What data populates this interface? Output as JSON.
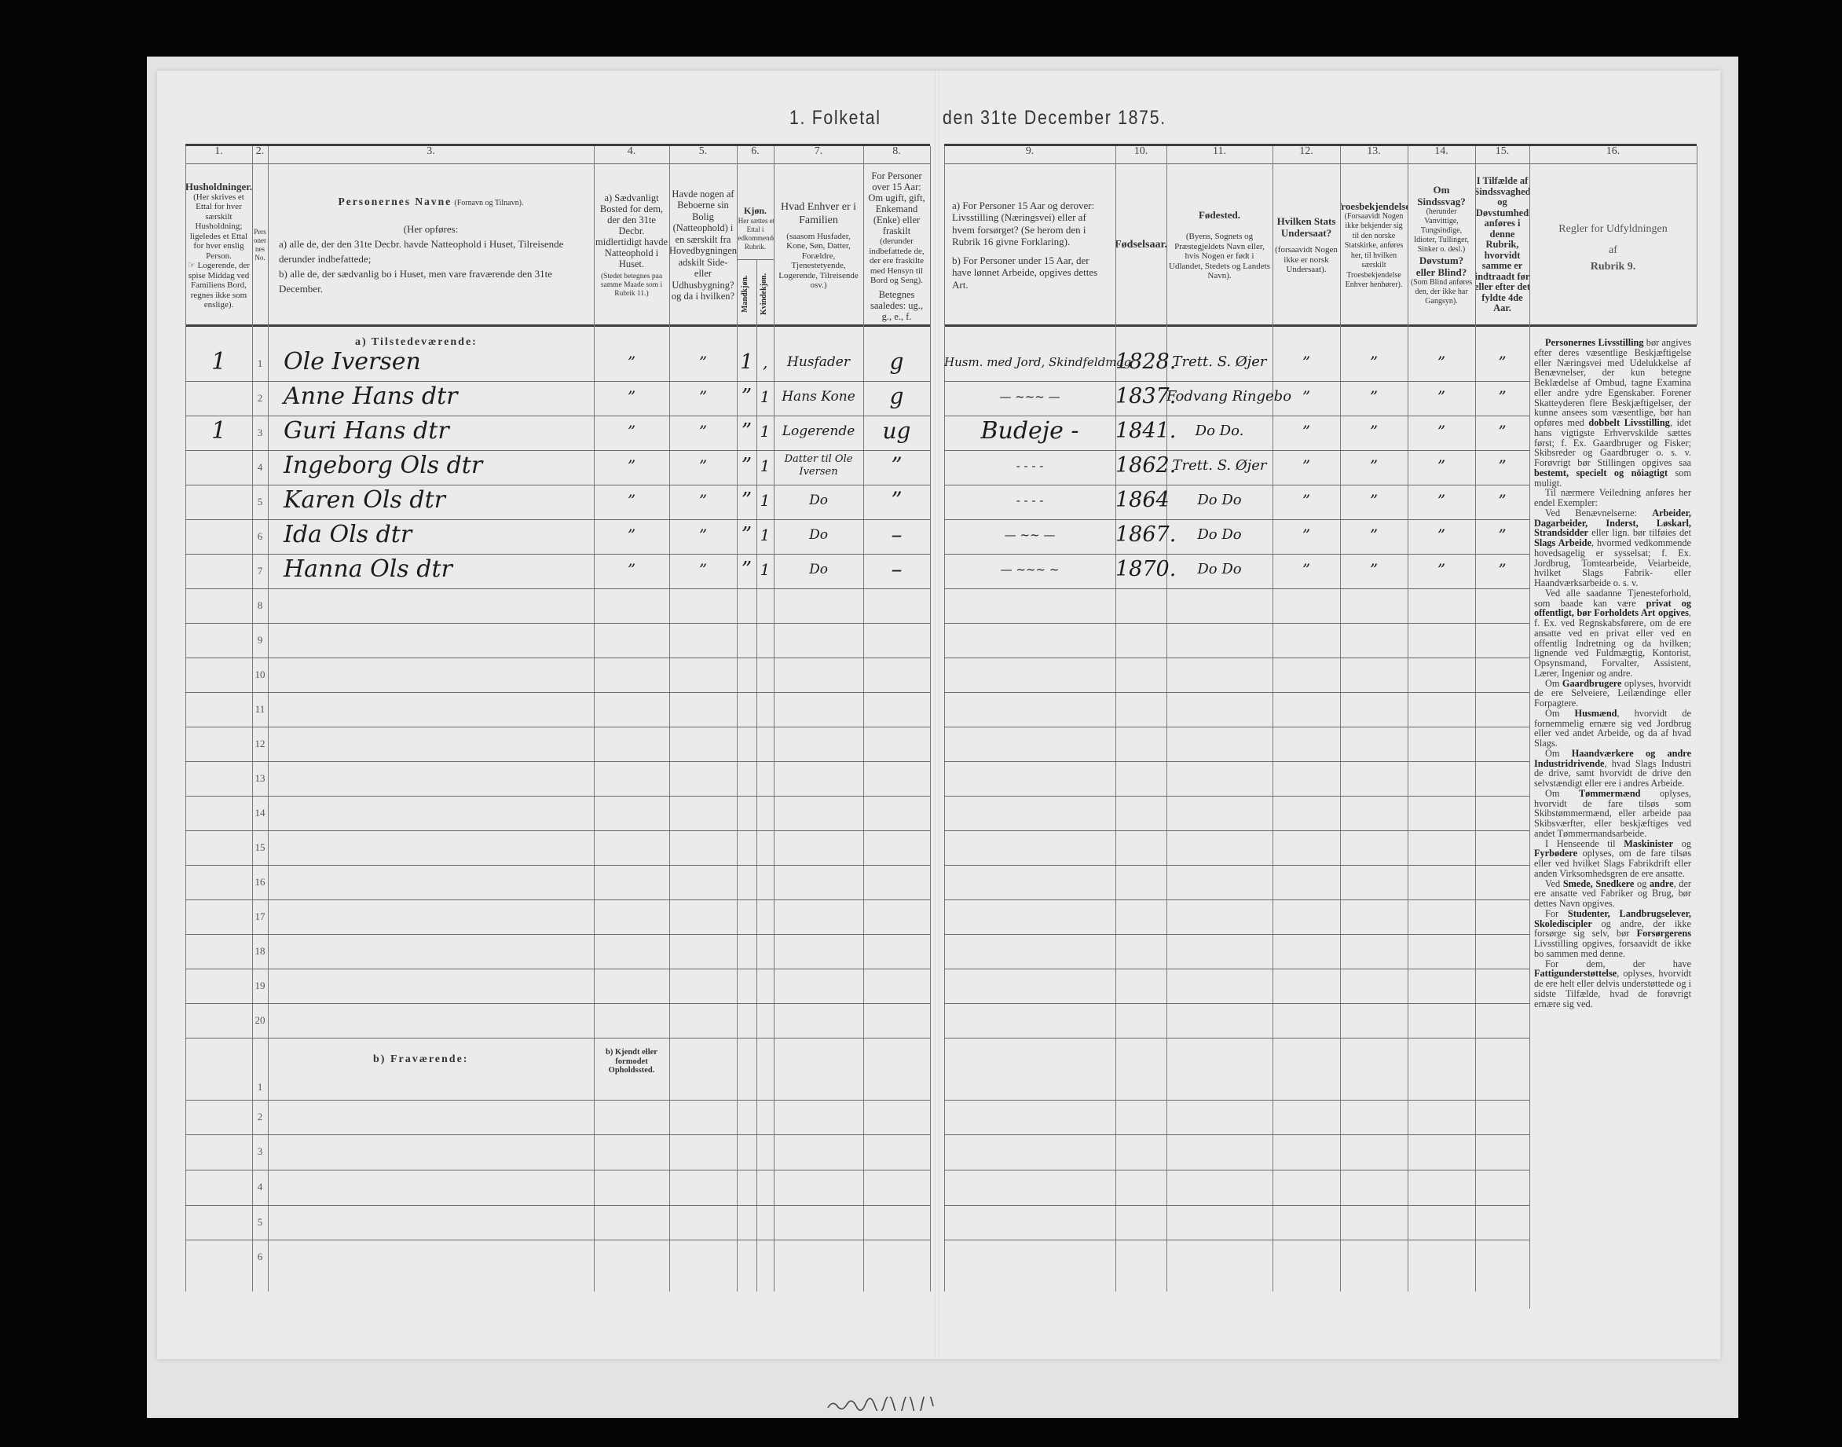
{
  "title": {
    "part1": "1. Folketal",
    "part2": "den 31te December 1875."
  },
  "column_numbers": [
    "1.",
    "2.",
    "3.",
    "4.",
    "5.",
    "6.",
    "7.",
    "8.",
    "9.",
    "10.",
    "11.",
    "12.",
    "13.",
    "14.",
    "15.",
    "16."
  ],
  "headers": {
    "col1": {
      "title": "Husholdninger.",
      "note": "(Her skrives et Ettal for hver særskilt Husholdning; ligeledes et Ettal for hver enslig Person.",
      "note2": "☞ Logerende, der spise Middag ved Familiens Bord, regnes ikke som enslige)."
    },
    "col2": {
      "title": "Personernes No."
    },
    "col3": {
      "title": "Personernes Navne",
      "title_note": "(Fornavn og Tilnavn).",
      "intro": "(Her opføres:",
      "a": "a) alle de, der den 31te Decbr. havde Natteophold i Huset, Tilreisende derunder indbefattede;",
      "b": "b) alle de, der sædvanlig bo i Huset, men vare fraværende den 31te December."
    },
    "col4": {
      "title": "a) Sædvanligt Bosted for dem, der den 31te Decbr. midlertidigt havde Natteophold i Huset.",
      "note": "(Stedet betegnes paa samme Maade som i Rubrik 11.)"
    },
    "col5": {
      "title": "Havde nogen af Beboerne sin Bolig (Natteophold) i en særskilt fra Hovedbygningen adskilt Side- eller Udhusbygning? og da i hvilken?"
    },
    "col6": {
      "title": "Kjøn.",
      "note": "(Her sættes et Ettal i vedkommende Rubrik.",
      "male": "Mandkjøn.",
      "female": "Kvindekjøn."
    },
    "col7": {
      "title": "Hvad Enhver er i Familien",
      "note": "(saasom Husfader, Kone, Søn, Datter, Forældre, Tjenestetyende, Logerende, Tilreisende osv.)"
    },
    "col8": {
      "title": "For Personer over 15 Aar: Om ugift, gift, Enkemand (Enke) eller fraskilt",
      "note": "(derunder indbefattede de, der ere fraskilte med Hensyn til Bord og Seng).",
      "note2": "Betegnes saaledes: ug., g., e., f."
    },
    "col9": {
      "a": "a) For Personer 15 Aar og derover: Livsstilling (Næringsvei) eller af hvem forsørget? (Se herom den i Rubrik 16 givne Forklaring).",
      "b": "b) For Personer under 15 Aar, der have lønnet Arbeide, opgives dettes Art."
    },
    "col10": {
      "title": "Fødselsaar."
    },
    "col11": {
      "title": "Fødested.",
      "note": "(Byens, Sognets og Præstegjeldets Navn eller, hvis Nogen er født i Udlandet, Stedets og Landets Navn)."
    },
    "col12": {
      "title": "Hvilken Stats Undersaat?",
      "note": "(forsaavidt Nogen ikke er norsk Undersaat)."
    },
    "col13": {
      "title": "Troesbekjendelse.",
      "note": "(Forsaavidt Nogen ikke bekjender sig til den norske Statskirke, anføres her, til hvilken særskilt Troesbekjendelse Enhver henhører)."
    },
    "col14": {
      "title": "Om Sindssvag?",
      "note": "(herunder Vanvittige, Tungsindige, Idioter, Tullinger, Sinker o. desl.)",
      "title2": "Døvstum? eller Blind?",
      "note2": "(Som Blind anføres den, der ikke har Gangsyn)."
    },
    "col15": {
      "title": "I Tilfælde af Sindssvaghed og Døvstumhed anføres i denne Rubrik, hvorvidt samme er indtraadt før eller efter det fyldte 4de Aar."
    },
    "col16": {
      "line1": "Regler for Udfyldningen",
      "line2": "af",
      "line3": "Rubrik 9."
    }
  },
  "present_label": "a) Tilstedeværende:",
  "absent_label": "b) Fraværende:",
  "absent_col4_label": "b) Kjendt eller formodet Opholdssted.",
  "present_row_numbers": [
    "1",
    "2",
    "3",
    "4",
    "5",
    "6",
    "7",
    "8",
    "9",
    "10",
    "11",
    "12",
    "13",
    "14",
    "15",
    "16",
    "17",
    "18",
    "19",
    "20"
  ],
  "absent_row_numbers": [
    "1",
    "2",
    "3",
    "4",
    "5",
    "6"
  ],
  "rows": [
    {
      "household": "1",
      "name": "Ole Iversen",
      "bosted": "”",
      "bolig": "”",
      "male": "1",
      "female": "‚",
      "family_role": "Husfader",
      "civil": "g",
      "occupation": "Husm. med Jord, Skindfeldmag",
      "birth_year": "1828.",
      "birthplace": "Trett. S. Øjer",
      "citizenship": "”",
      "religion": "”",
      "insane": "”",
      "onset": "”"
    },
    {
      "household": "",
      "name": "Anne Hans dtr",
      "bosted": "”",
      "bolig": "”",
      "male": "”",
      "female": "1",
      "family_role": "Hans Kone",
      "civil": "g",
      "occupation": "— ~~~ —",
      "birth_year": "1837.",
      "birthplace": "Fodvang Ringebo",
      "citizenship": "”",
      "religion": "”",
      "insane": "”",
      "onset": "”"
    },
    {
      "household": "1",
      "name": "Guri Hans dtr",
      "bosted": "”",
      "bolig": "”",
      "male": "”",
      "female": "1",
      "family_role": "Logerende",
      "civil": "ug",
      "occupation": "Budeje -",
      "birth_year": "1841.",
      "birthplace": "Do   Do.",
      "citizenship": "”",
      "religion": "”",
      "insane": "”",
      "onset": "”"
    },
    {
      "household": "",
      "name": "Ingeborg Ols dtr",
      "bosted": "”",
      "bolig": "”",
      "male": "”",
      "female": "1",
      "family_role": "Datter til Ole Iversen",
      "civil": "”",
      "occupation": "- - - -",
      "birth_year": "1862.",
      "birthplace": "Trett. S. Øjer",
      "citizenship": "”",
      "religion": "”",
      "insane": "”",
      "onset": "”"
    },
    {
      "household": "",
      "name": "Karen Ols dtr",
      "bosted": "”",
      "bolig": "”",
      "male": "”",
      "female": "1",
      "family_role": "Do",
      "civil": "”",
      "occupation": "- - - -",
      "birth_year": "1864",
      "birthplace": "Do   Do",
      "citizenship": "”",
      "religion": "”",
      "insane": "”",
      "onset": "”"
    },
    {
      "household": "",
      "name": "Ida Ols dtr",
      "bosted": "”",
      "bolig": "”",
      "male": "”",
      "female": "1",
      "family_role": "Do",
      "civil": "–",
      "occupation": "— ~~ —",
      "birth_year": "1867.",
      "birthplace": "Do   Do",
      "citizenship": "”",
      "religion": "”",
      "insane": "”",
      "onset": "”"
    },
    {
      "household": "",
      "name": "Hanna Ols dtr",
      "bosted": "”",
      "bolig": "”",
      "male": "”",
      "female": "1",
      "family_role": "Do",
      "civil": "–",
      "occupation": "—  ~~~  ~",
      "birth_year": "1870.",
      "birthplace": "Do   Do",
      "citizenship": "”",
      "religion": "”",
      "insane": "”",
      "onset": "”"
    }
  ],
  "rules": [
    "<b>Personernes Livsstilling</b> bør angives efter deres væsentlige Beskjæftigelse eller Næringsvei med Udelukkelse af Benævnelser, der kun betegne Beklædelse af Ombud, tagne Examina eller andre ydre Egenskaber. Forener Skatteyderen flere Beskjæftigelser, der kunne ansees som væsentlige, bør han opføres med <b>dobbelt Livsstilling</b>, idet hans vigtigste Erhvervskilde sættes først; f. Ex. Gaardbruger og Fisker; Skibsreder og Gaardbruger o. s. v. Forøvrigt bør Stillingen opgives saa <b>bestemt, specielt og nöiagtigt</b> som muligt.",
    "Til nærmere Veiledning anføres her endel Exempler:",
    "Ved Benævnelserne: <b>Arbeider, Dagarbeider, Inderst, Løskarl, Strandsidder</b> eller lign. bør tilføies det <b>Slags Arbeide</b>, hvormed vedkommende hovedsagelig er sysselsat; f. Ex. Jordbrug, Tomtearbeide, Veiarbeide, hvilket Slags Fabrik- eller Haandværksarbeide o. s. v.",
    "Ved alle saadanne Tjenesteforhold, som baade kan være <b>privat og offentligt, bør Forholdets Art opgives</b>, f. Ex. ved Regnskabsførere, om de ere ansatte ved en privat eller ved en offentlig Indretning og da hvilken; lignende ved Fuldmægtig, Kontorist, Opsynsmand, Forvalter, Assistent, Lærer, Ingeniør og andre.",
    "Om <b>Gaardbrugere</b> oplyses, hvorvidt de ere Selveiere, Leilændinge eller Forpagtere.",
    "Om <b>Husmænd</b>, hvorvidt de fornemmelig ernære sig ved Jordbrug eller ved andet Arbeide, og da af hvad Slags.",
    "Om <b>Haandværkere og andre Industridrivende</b>, hvad Slags Industri de drive, samt hvorvidt de drive den selvstændigt eller ere i andres Arbeide.",
    "Om <b>Tømmermænd</b> oplyses, hvorvidt de fare tilsøs som Skibstømmermænd, eller arbeide paa Skibsværfter, eller beskjæftiges ved andet Tømmermandsarbeide.",
    "I Henseende til <b>Maskinister</b> og <b>Fyrbødere</b> oplyses, om de fare tilsøs eller ved hvilket Slags Fabrikdrift eller anden Virksomhedsgren de ere ansatte.",
    "Ved <b>Smede, Snedkere</b> og <b>andre</b>, der ere ansatte ved Fabriker og Brug, bør dettes Navn opgives.",
    "For <b>Studenter, Landbrugselever, Skolediscipler</b> og andre, der ikke forsørge sig selv, bør <b>Forsørgerens</b> Livsstilling opgives, forsaavidt de ikke bo sammen med denne.",
    "For dem, der have <b>Fattigunderstøttelse</b>, oplyses, hvorvidt de ere helt eller delvis understøttede og i sidste Tilfælde, hvad de forøvrigt ernære sig ved."
  ]
}
